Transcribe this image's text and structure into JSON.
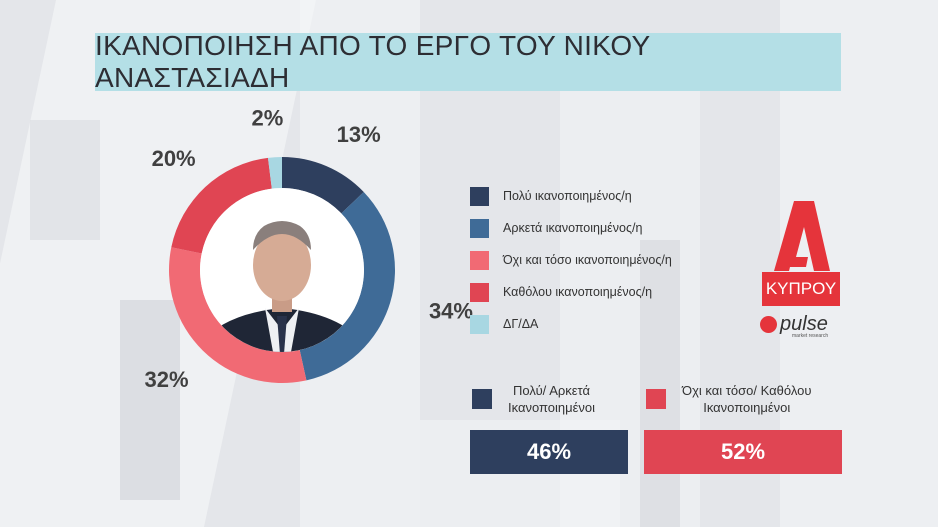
{
  "title": "ΙΚΑΝΟΠΟΙΗΣΗ ΑΠΟ ΤΟ ΕΡΓΟ ΤΟΥ ΝΙΚΟΥ ΑΝΑΣΤΑΣΙΑΔΗ",
  "colors": {
    "very_satisfied": "#2e3f5e",
    "fairly_satisfied": "#3f6b97",
    "not_so_satisfied": "#f16a74",
    "not_at_all": "#e04553",
    "dk_na": "#a8d7e2"
  },
  "chart_data": {
    "type": "pie",
    "donut": true,
    "categories": [
      "Πολύ ικανοποιημένος/η",
      "Αρκετά ικανοποιημένος/η",
      "Όχι και τόσο ικανοποιημένος/η",
      "Καθόλου ικανοποιημένος/η",
      "ΔΓ/ΔΑ"
    ],
    "values": [
      13,
      34,
      32,
      20,
      2
    ],
    "labels": [
      "13%",
      "34%",
      "32%",
      "20%",
      "2%"
    ],
    "colors": [
      "#2e3f5e",
      "#3f6b97",
      "#f16a74",
      "#e04553",
      "#a8d7e2"
    ],
    "legend_position": "right"
  },
  "summary": {
    "left_label_1": "Πολύ/ Αρκετά",
    "left_label_2": "Ικανοποιημένοι",
    "right_label_1": "Όχι και τόσο/ Καθόλου",
    "right_label_2": "Ικανοποιημένοι",
    "left_value": "46%",
    "right_value": "52%",
    "left_color": "#2e3f5e",
    "right_color": "#e04553"
  },
  "logo": {
    "channel": "ΚΥΠΡΟΥ",
    "brand": "pulse",
    "brand_sub": "market research"
  }
}
